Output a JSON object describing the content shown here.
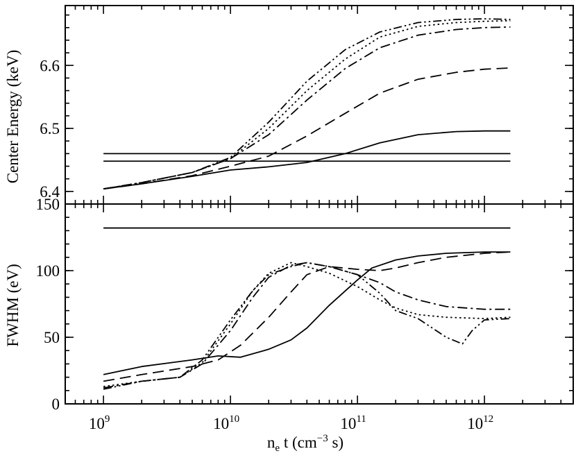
{
  "chart_data": [
    {
      "type": "line",
      "panel": "top",
      "xscale": "log",
      "xlim": [
        500000000.0,
        5000000000000.0
      ],
      "ylim": [
        6.38,
        6.695
      ],
      "ylabel": "Center Energy (keV)",
      "yticks": [
        6.4,
        6.5,
        6.6
      ],
      "ytick_labels": [
        "6.4",
        "6.5",
        "6.6"
      ],
      "reference_lines": [
        6.46,
        6.448
      ],
      "series": [
        {
          "style": "solid",
          "x": [
            1000000000.0,
            2000000000.0,
            5000000000.0,
            10000000000.0,
            20000000000.0,
            40000000000.0,
            80000000000.0,
            150000000000.0,
            300000000000.0,
            600000000000.0,
            1000000000000.0,
            1600000000000.0
          ],
          "y": [
            6.404,
            6.412,
            6.424,
            6.434,
            6.439,
            6.446,
            6.46,
            6.477,
            6.49,
            6.495,
            6.496,
            6.496
          ]
        },
        {
          "style": "dashed",
          "x": [
            1000000000.0,
            2000000000.0,
            5000000000.0,
            10000000000.0,
            20000000000.0,
            40000000000.0,
            80000000000.0,
            150000000000.0,
            300000000000.0,
            600000000000.0,
            1000000000000.0,
            1600000000000.0
          ],
          "y": [
            6.404,
            6.412,
            6.425,
            6.44,
            6.456,
            6.488,
            6.524,
            6.556,
            6.578,
            6.589,
            6.594,
            6.596
          ]
        },
        {
          "style": "dash-dot",
          "x": [
            1000000000.0,
            2000000000.0,
            5000000000.0,
            10000000000.0,
            20000000000.0,
            40000000000.0,
            80000000000.0,
            150000000000.0,
            300000000000.0,
            600000000000.0,
            1000000000000.0,
            1600000000000.0
          ],
          "y": [
            6.404,
            6.414,
            6.43,
            6.452,
            6.49,
            6.545,
            6.595,
            6.628,
            6.648,
            6.657,
            6.66,
            6.661
          ]
        },
        {
          "style": "dotted",
          "x": [
            1000000000.0,
            2000000000.0,
            5000000000.0,
            10000000000.0,
            20000000000.0,
            40000000000.0,
            80000000000.0,
            150000000000.0,
            300000000000.0,
            600000000000.0,
            1000000000000.0,
            1600000000000.0
          ],
          "y": [
            6.404,
            6.414,
            6.43,
            6.452,
            6.5,
            6.56,
            6.61,
            6.645,
            6.662,
            6.668,
            6.67,
            6.671
          ]
        },
        {
          "style": "dash-dot-dot",
          "x": [
            1000000000.0,
            2000000000.0,
            5000000000.0,
            10000000000.0,
            20000000000.0,
            40000000000.0,
            80000000000.0,
            150000000000.0,
            300000000000.0,
            600000000000.0,
            1000000000000.0,
            1600000000000.0
          ],
          "y": [
            6.404,
            6.414,
            6.43,
            6.454,
            6.51,
            6.575,
            6.625,
            6.653,
            6.668,
            6.673,
            6.674,
            6.673
          ]
        }
      ]
    },
    {
      "type": "line",
      "panel": "bottom",
      "xscale": "log",
      "xlim": [
        500000000.0,
        5000000000000.0
      ],
      "ylim": [
        0,
        150
      ],
      "xlabel_main": "n",
      "xlabel_sub": "e",
      "xlabel_rest": " t (cm",
      "xlabel_sup": "−3",
      "xlabel_end": " s)",
      "ylabel": "FWHM (eV)",
      "yticks": [
        0,
        50,
        100,
        150
      ],
      "ytick_labels": [
        "0",
        "50",
        "100",
        "150"
      ],
      "xticks": [
        1000000000.0,
        10000000000.0,
        100000000000.0,
        1000000000000.0
      ],
      "xtick_base": [
        "10",
        "10",
        "10",
        "10"
      ],
      "xtick_exp": [
        "9",
        "10",
        "11",
        "12"
      ],
      "reference_lines": [
        132
      ],
      "series": [
        {
          "style": "solid",
          "x": [
            1000000000.0,
            2000000000.0,
            5000000000.0,
            8000000000.0,
            12000000000.0,
            20000000000.0,
            30000000000.0,
            40000000000.0,
            60000000000.0,
            100000000000.0,
            130000000000.0,
            200000000000.0,
            300000000000.0,
            500000000000.0,
            1000000000000.0,
            1600000000000.0
          ],
          "y": [
            22,
            28,
            33,
            36,
            35,
            41,
            48,
            57,
            74,
            93,
            102,
            108,
            111,
            113,
            114,
            114
          ]
        },
        {
          "style": "dashed",
          "x": [
            1000000000.0,
            2000000000.0,
            5000000000.0,
            8000000000.0,
            12000000000.0,
            20000000000.0,
            30000000000.0,
            40000000000.0,
            60000000000.0,
            100000000000.0,
            150000000000.0,
            200000000000.0,
            300000000000.0,
            500000000000.0,
            1000000000000.0,
            1600000000000.0
          ],
          "y": [
            17,
            22,
            28,
            33,
            44,
            65,
            84,
            97,
            103,
            101,
            100,
            102,
            106,
            110,
            113,
            114
          ]
        },
        {
          "style": "dash-dot",
          "x": [
            1000000000.0,
            2000000000.0,
            4000000000.0,
            6000000000.0,
            10000000000.0,
            15000000000.0,
            20000000000.0,
            30000000000.0,
            40000000000.0,
            60000000000.0,
            100000000000.0,
            150000000000.0,
            200000000000.0,
            300000000000.0,
            500000000000.0,
            1000000000000.0,
            1600000000000.0
          ],
          "y": [
            12,
            17,
            20,
            30,
            55,
            80,
            95,
            104,
            106,
            103,
            97,
            91,
            84,
            78,
            73,
            71,
            71
          ]
        },
        {
          "style": "dotted",
          "x": [
            1000000000.0,
            2000000000.0,
            4000000000.0,
            6000000000.0,
            10000000000.0,
            15000000000.0,
            20000000000.0,
            30000000000.0,
            40000000000.0,
            60000000000.0,
            100000000000.0,
            150000000000.0,
            200000000000.0,
            300000000000.0,
            500000000000.0,
            1000000000000.0,
            1600000000000.0
          ],
          "y": [
            13,
            17,
            20,
            31,
            60,
            85,
            98,
            106,
            103,
            98,
            88,
            78,
            72,
            67,
            65,
            64,
            65
          ]
        },
        {
          "style": "dash-dot-dot",
          "x": [
            1000000000.0,
            2000000000.0,
            4000000000.0,
            6000000000.0,
            10000000000.0,
            15000000000.0,
            20000000000.0,
            30000000000.0,
            40000000000.0,
            60000000000.0,
            100000000000.0,
            150000000000.0,
            200000000000.0,
            300000000000.0,
            500000000000.0,
            670000000000.0,
            800000000000.0,
            1000000000000.0,
            1600000000000.0
          ],
          "y": [
            11,
            17,
            20,
            33,
            63,
            85,
            97,
            103,
            106,
            103,
            97,
            83,
            70,
            64,
            50,
            45,
            55,
            63,
            64
          ]
        }
      ]
    }
  ]
}
